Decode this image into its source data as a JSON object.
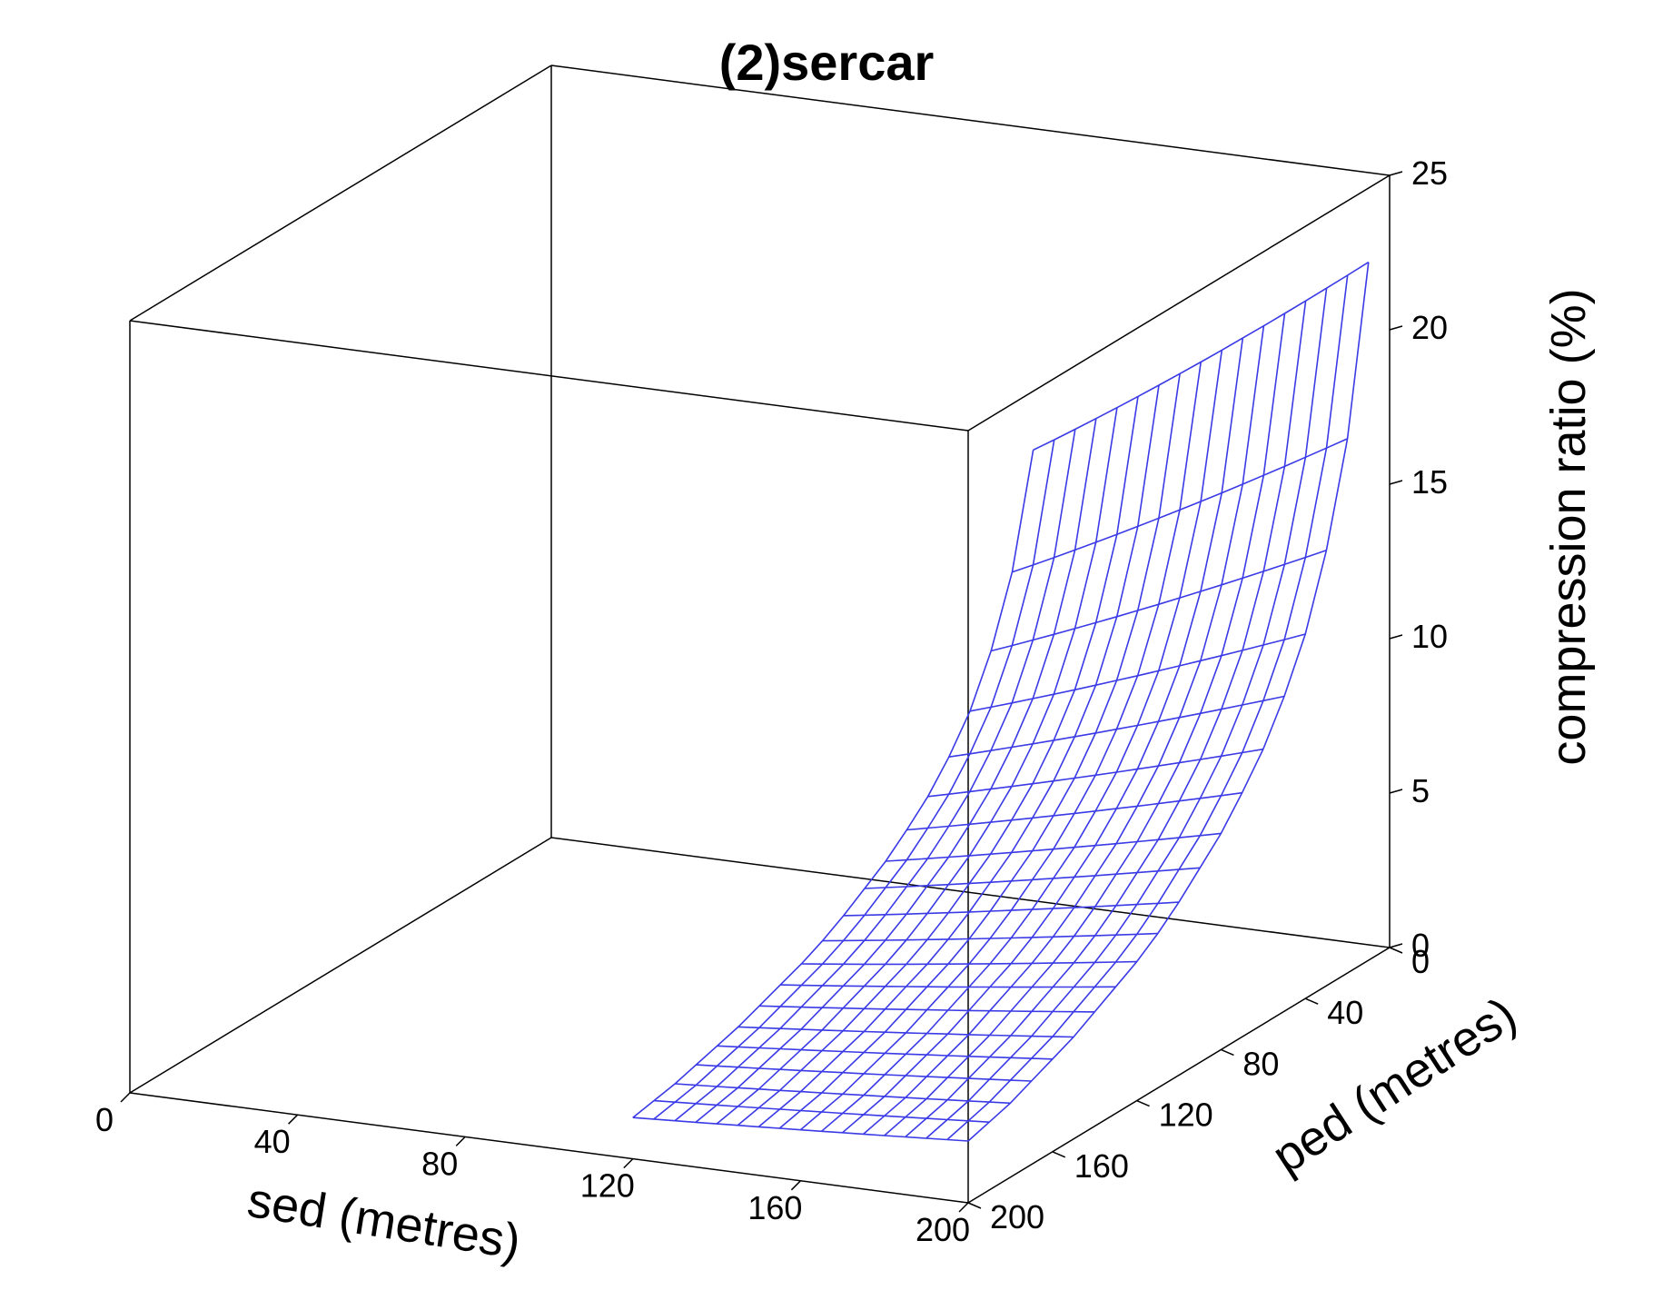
{
  "chart_data": {
    "type": "surface",
    "title": "(2)sercar",
    "xlabel": "sed (metres)",
    "ylabel": "ped (metres)",
    "zlabel": "compression ratio (%)",
    "xlim": [
      0,
      200
    ],
    "ylim": [
      0,
      200
    ],
    "zlim": [
      0,
      25
    ],
    "x_ticks": [
      0,
      40,
      80,
      120,
      160,
      200
    ],
    "x_tick_labels": [
      "0",
      "40",
      "80",
      "120",
      "160",
      "200"
    ],
    "y_ticks": [
      0,
      40,
      80,
      120,
      160,
      200
    ],
    "y_tick_labels": [
      "0",
      "40",
      "80",
      "120",
      "160",
      "200"
    ],
    "z_ticks": [
      0,
      5,
      10,
      15,
      20,
      25
    ],
    "z_tick_labels": [
      "0",
      "5",
      "10",
      "15",
      "20",
      "25"
    ],
    "surface": {
      "x": [
        200
      ],
      "y": [
        10,
        20,
        30,
        40,
        50,
        60,
        70,
        80,
        90,
        100,
        110,
        120,
        130,
        140,
        150,
        160,
        170,
        180,
        190,
        200
      ],
      "z_at_x200": [
        22.6,
        17.3,
        14.1,
        11.8,
        10.2,
        8.9,
        7.9,
        7.0,
        6.3,
        5.6,
        5.0,
        4.5,
        4.1,
        3.7,
        3.3,
        3.0,
        2.7,
        2.4,
        2.2,
        2.0
      ],
      "z_at_y200": [
        0.5,
        0.6,
        0.7,
        0.8,
        0.9,
        1.0,
        1.1,
        1.2,
        1.3,
        1.4,
        1.5,
        1.6,
        1.7,
        1.8,
        1.9,
        2.0
      ],
      "x_range_of_y200_edge": [
        120,
        200
      ],
      "z_at_y10": [
        14.4,
        14.6,
        15.0,
        15.5,
        16.1,
        16.6,
        17.2,
        17.9,
        18.6,
        19.3,
        20.0,
        20.7,
        21.5,
        22.6
      ],
      "x_range_of_y10_edge": [
        110,
        200
      ]
    },
    "grid": false,
    "legend": "none",
    "colors": {
      "mesh": "#3a3ae6",
      "box": "#000000"
    }
  }
}
